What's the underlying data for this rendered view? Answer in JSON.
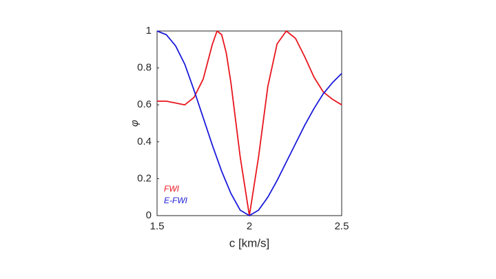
{
  "chart_data": {
    "type": "line",
    "x": [
      1.5,
      1.55,
      1.6,
      1.65,
      1.7,
      1.75,
      1.8,
      1.825,
      1.85,
      1.875,
      1.9,
      1.95,
      2.0,
      2.05,
      2.1,
      2.15,
      2.2,
      2.25,
      2.3,
      2.35,
      2.4,
      2.45,
      2.5
    ],
    "series": [
      {
        "name": "FWI",
        "color": "#e8141c",
        "values": [
          0.62,
          0.62,
          0.61,
          0.6,
          0.64,
          0.74,
          0.93,
          1.0,
          0.98,
          0.88,
          0.72,
          0.32,
          0.0,
          0.32,
          0.7,
          0.93,
          1.0,
          0.96,
          0.86,
          0.75,
          0.67,
          0.63,
          0.6
        ]
      },
      {
        "name": "E-FWI",
        "color": "#1a1adb",
        "values": [
          1.0,
          0.98,
          0.92,
          0.82,
          0.68,
          0.53,
          0.38,
          0.31,
          0.24,
          0.18,
          0.12,
          0.03,
          0.0,
          0.03,
          0.1,
          0.19,
          0.29,
          0.39,
          0.49,
          0.58,
          0.66,
          0.72,
          0.77
        ]
      }
    ],
    "xlabel": "c [km/s]",
    "ylabel": "φ",
    "xlim": [
      1.5,
      2.5
    ],
    "xticks": [
      1.5,
      2,
      2.5
    ],
    "ylim": [
      0,
      1
    ],
    "yticks": [
      0,
      0.2,
      0.4,
      0.6,
      0.8,
      1
    ],
    "legend": "lower left"
  }
}
